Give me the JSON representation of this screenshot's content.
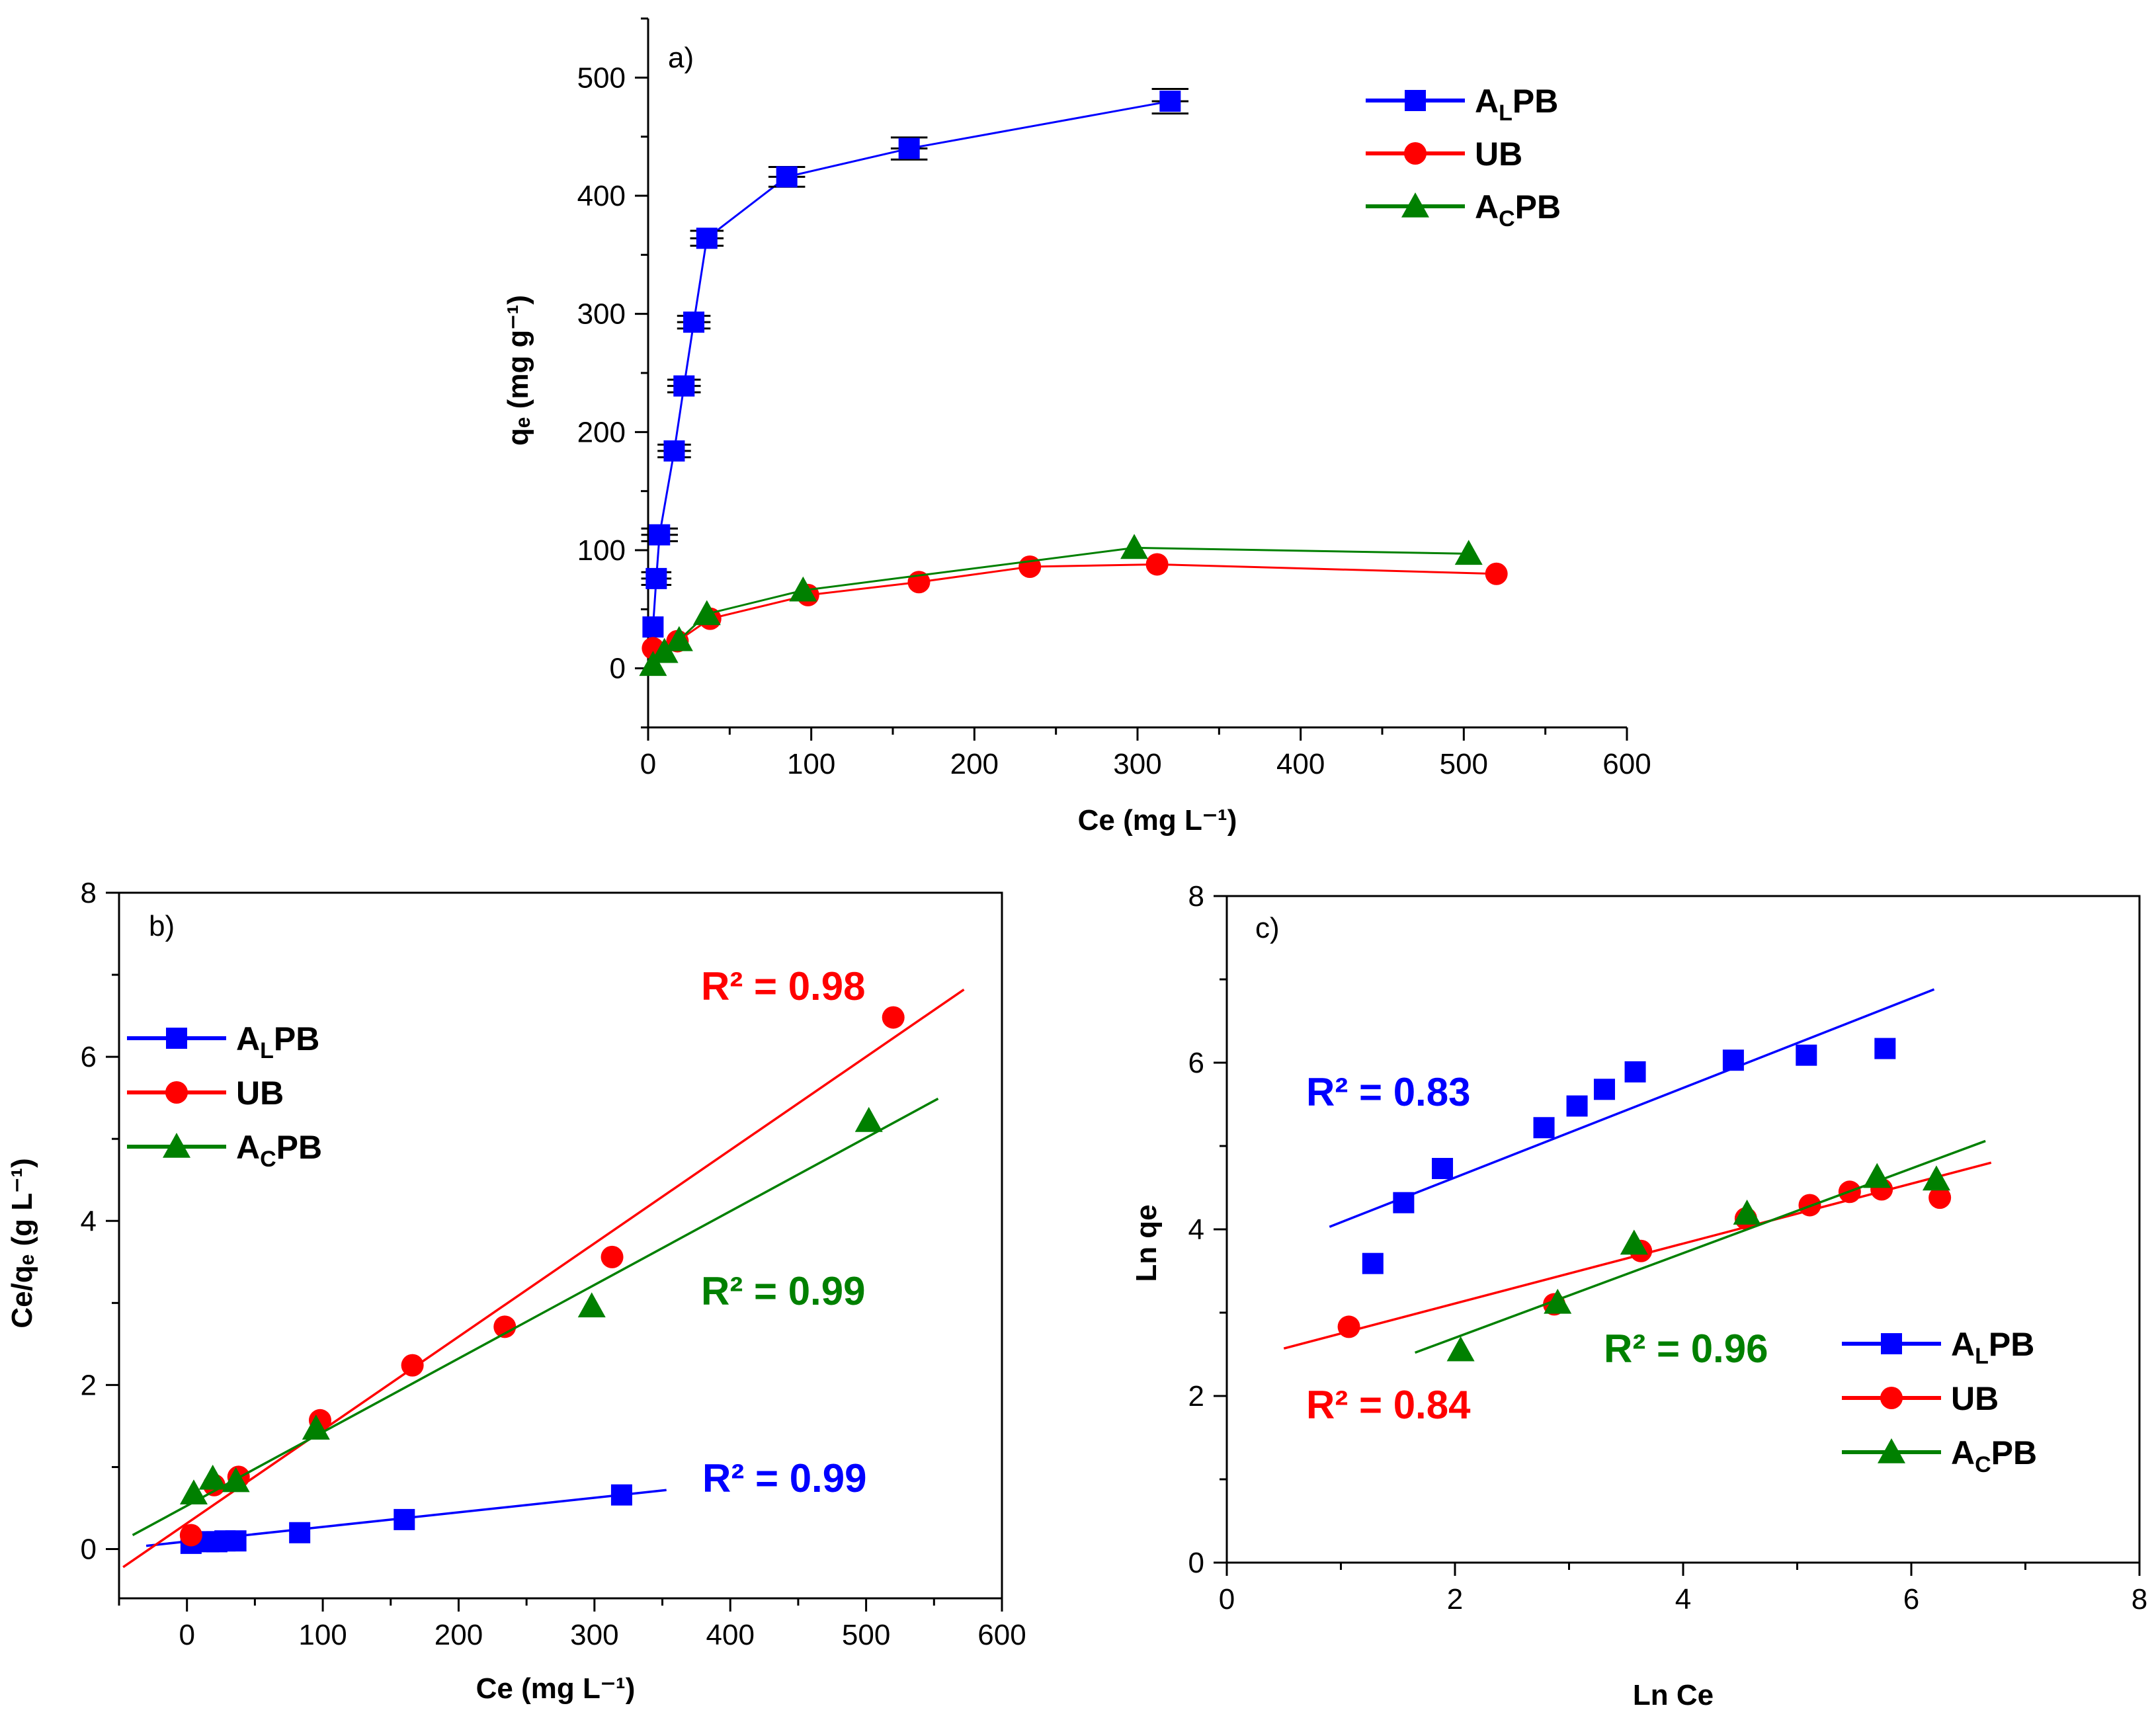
{
  "chart_data": [
    {
      "panel": "a)",
      "type": "line",
      "xlabel": "Ce (mg L⁻¹)",
      "ylabel": "qₑ (mg g⁻¹)",
      "xlim": [
        0,
        600
      ],
      "ylim": [
        -50,
        550
      ],
      "xticks": [
        0,
        100,
        200,
        300,
        400,
        500,
        600
      ],
      "yticks": [
        0,
        100,
        200,
        300,
        400,
        500
      ],
      "legend": "top-right",
      "series": [
        {
          "name": "ALPB",
          "name_main": "A",
          "name_sub": "L",
          "name_rest": "PB",
          "color": "#0000ff",
          "marker": "square",
          "x": [
            3,
            5,
            7,
            16,
            22,
            28,
            36,
            85,
            160,
            320
          ],
          "y": [
            35,
            76,
            113,
            184,
            239,
            293,
            364,
            416,
            440,
            480
          ],
          "xerr": [
            3,
            6,
            8,
            7,
            7,
            7,
            7,
            8,
            8,
            8
          ],
          "yerr": [
            2,
            2,
            2,
            2,
            2,
            2,
            3,
            5,
            6,
            7
          ]
        },
        {
          "name": "UB",
          "name_main": "UB",
          "name_sub": "",
          "name_rest": "",
          "color": "#ff0000",
          "marker": "circle",
          "x": [
            3,
            18,
            38,
            98,
            166,
            234,
            312,
            520
          ],
          "y": [
            17,
            23,
            42,
            62,
            73,
            86,
            88,
            80
          ]
        },
        {
          "name": "ACPB",
          "name_main": "A",
          "name_sub": "C",
          "name_rest": "PB",
          "color": "#008000",
          "marker": "triangle",
          "x": [
            3,
            10,
            19,
            36,
            95,
            298,
            503
          ],
          "y": [
            3,
            14,
            24,
            46,
            66,
            102,
            97
          ]
        }
      ]
    },
    {
      "panel": "b)",
      "type": "scatter",
      "xlabel": "Ce (mg L⁻¹)",
      "ylabel": "Ce/qₑ (g L⁻¹)",
      "xlim": [
        -50,
        600
      ],
      "ylim": [
        -0.6,
        8
      ],
      "xticks": [
        0,
        100,
        200,
        300,
        400,
        500,
        600
      ],
      "yticks": [
        0,
        2,
        4,
        6,
        8
      ],
      "legend": "top-left",
      "series": [
        {
          "name": "ALPB",
          "name_main": "A",
          "name_sub": "L",
          "name_rest": "PB",
          "color": "#0000ff",
          "marker": "square",
          "x": [
            3,
            16,
            22,
            28,
            36,
            83,
            160,
            320
          ],
          "y": [
            0.07,
            0.09,
            0.09,
            0.1,
            0.1,
            0.2,
            0.36,
            0.66
          ],
          "fit": {
            "x": [
              -30,
              353
            ],
            "y": [
              0.04,
              0.72
            ]
          },
          "r2": "R² = 0.99"
        },
        {
          "name": "UB",
          "name_main": "UB",
          "name_sub": "",
          "name_rest": "",
          "color": "#ff0000",
          "marker": "circle",
          "x": [
            3,
            20,
            38,
            98,
            166,
            234,
            313,
            520
          ],
          "y": [
            0.17,
            0.78,
            0.88,
            1.57,
            2.24,
            2.71,
            3.56,
            6.48
          ],
          "fit": {
            "x": [
              -47,
              572
            ],
            "y": [
              -0.22,
              6.82
            ]
          },
          "r2": "R² = 0.98"
        },
        {
          "name": "ACPB",
          "name_main": "A",
          "name_sub": "C",
          "name_rest": "PB",
          "color": "#008000",
          "marker": "triangle",
          "x": [
            5,
            19,
            36,
            95,
            298,
            502
          ],
          "y": [
            0.68,
            0.86,
            0.83,
            1.47,
            2.96,
            5.22
          ],
          "fit": {
            "x": [
              -40,
              553
            ],
            "y": [
              0.17,
              5.49
            ]
          },
          "r2": "R² = 0.99"
        }
      ]
    },
    {
      "panel": "c)",
      "type": "scatter",
      "xlabel": "Ln Ce",
      "ylabel": "Ln qe",
      "xlim": [
        0,
        8
      ],
      "ylim": [
        0,
        8
      ],
      "xticks": [
        0,
        2,
        4,
        6,
        8
      ],
      "yticks": [
        0,
        2,
        4,
        6,
        8
      ],
      "legend": "bottom-right",
      "series": [
        {
          "name": "ALPB",
          "name_main": "A",
          "name_sub": "L",
          "name_rest": "PB",
          "color": "#0000ff",
          "marker": "square",
          "x": [
            1.28,
            1.55,
            1.89,
            2.78,
            3.07,
            3.31,
            3.58,
            4.44,
            5.08,
            5.77
          ],
          "y": [
            3.59,
            4.32,
            4.73,
            5.22,
            5.48,
            5.68,
            5.89,
            6.03,
            6.09,
            6.17
          ],
          "fit": {
            "x": [
              0.9,
              6.2
            ],
            "y": [
              4.03,
              6.88
            ]
          },
          "r2": "R² = 0.83"
        },
        {
          "name": "UB",
          "name_main": "UB",
          "name_sub": "",
          "name_rest": "",
          "color": "#ff0000",
          "marker": "circle",
          "x": [
            1.07,
            2.87,
            3.63,
            4.55,
            5.11,
            5.46,
            5.74,
            6.25
          ],
          "y": [
            2.83,
            3.1,
            3.74,
            4.13,
            4.29,
            4.45,
            4.48,
            4.38
          ],
          "fit": {
            "x": [
              0.5,
              6.7
            ],
            "y": [
              2.57,
              4.8
            ]
          },
          "r2": "R² = 0.84"
        },
        {
          "name": "ACPB",
          "name_main": "A",
          "name_sub": "C",
          "name_rest": "PB",
          "color": "#008000",
          "marker": "triangle",
          "x": [
            2.05,
            2.9,
            3.57,
            4.56,
            5.7,
            6.22
          ],
          "y": [
            2.55,
            3.12,
            3.83,
            4.19,
            4.63,
            4.6
          ],
          "fit": {
            "x": [
              1.65,
              6.65
            ],
            "y": [
              2.52,
              5.06
            ]
          },
          "r2": "R² = 0.96"
        }
      ]
    }
  ]
}
